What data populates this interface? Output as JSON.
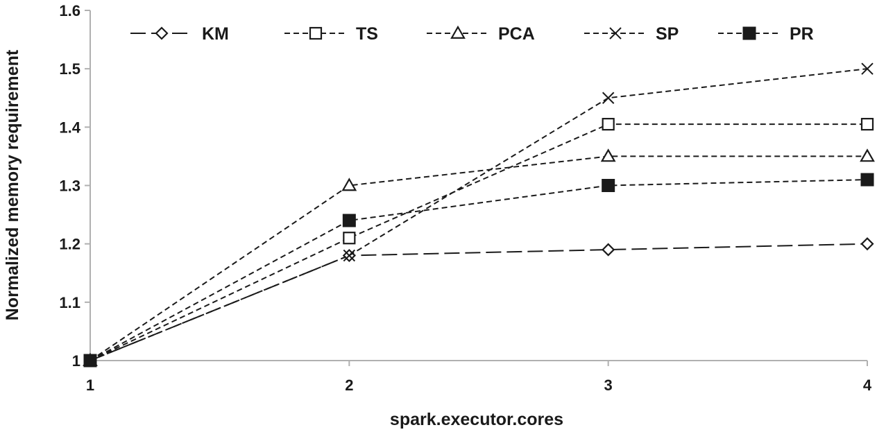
{
  "chart_data": {
    "type": "line",
    "title": "",
    "xlabel": "spark.executor.cores",
    "ylabel": "Normalized memory requirement",
    "x": [
      1,
      2,
      3,
      4
    ],
    "x_tick_labels": [
      "1",
      "2",
      "3",
      "4"
    ],
    "ylim": [
      1,
      1.6
    ],
    "y_ticks": [
      1,
      1.1,
      1.2,
      1.3,
      1.4,
      1.5,
      1.6
    ],
    "y_tick_labels": [
      "1",
      "1.1",
      "1.2",
      "1.3",
      "1.4",
      "1.5",
      "1.6"
    ],
    "grid": false,
    "legend_position": "top",
    "series": [
      {
        "name": "KM",
        "marker": "diamond-open",
        "dash": "long-dash",
        "values": [
          1,
          1.18,
          1.19,
          1.2
        ]
      },
      {
        "name": "TS",
        "marker": "square-open",
        "dash": "dash",
        "values": [
          1,
          1.21,
          1.405,
          1.405
        ]
      },
      {
        "name": "PCA",
        "marker": "triangle-open",
        "dash": "dash",
        "values": [
          1,
          1.3,
          1.35,
          1.35
        ]
      },
      {
        "name": "SP",
        "marker": "x",
        "dash": "dash",
        "values": [
          1,
          1.18,
          1.45,
          1.5
        ]
      },
      {
        "name": "PR",
        "marker": "square-filled",
        "dash": "dash",
        "values": [
          1,
          1.24,
          1.3,
          1.31
        ]
      }
    ],
    "colors": {
      "line": "#1a1a1a",
      "background": "#ffffff"
    }
  }
}
